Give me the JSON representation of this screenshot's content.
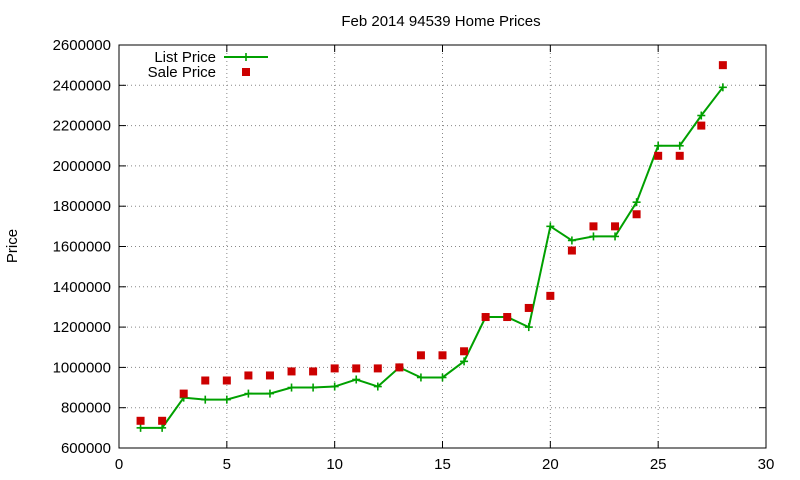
{
  "chart_data": {
    "type": "line",
    "title": "Feb 2014 94539 Home Prices",
    "xlabel": "",
    "ylabel": "Price",
    "xlim": [
      0,
      30
    ],
    "ylim": [
      600000,
      2600000
    ],
    "xticks": [
      0,
      5,
      10,
      15,
      20,
      25,
      30
    ],
    "yticks": [
      600000,
      800000,
      1000000,
      1200000,
      1400000,
      1600000,
      1800000,
      2000000,
      2200000,
      2400000,
      2600000
    ],
    "grid": true,
    "legend_position": "top-left",
    "x": [
      1,
      2,
      3,
      4,
      5,
      6,
      7,
      8,
      9,
      10,
      11,
      12,
      13,
      14,
      15,
      16,
      17,
      18,
      19,
      20,
      21,
      22,
      23,
      24,
      25,
      26,
      27,
      28
    ],
    "series": [
      {
        "name": "List Price",
        "style": "line-points",
        "color": "#00a000",
        "values": [
          700000,
          700000,
          850000,
          840000,
          840000,
          870000,
          870000,
          900000,
          900000,
          905000,
          940000,
          905000,
          1000000,
          950000,
          950000,
          1030000,
          1250000,
          1250000,
          1200000,
          1700000,
          1630000,
          1650000,
          1650000,
          1820000,
          2100000,
          2100000,
          2250000,
          2390000
        ]
      },
      {
        "name": "Sale Price",
        "style": "points",
        "color": "#cc0000",
        "values": [
          735000,
          735000,
          870000,
          935000,
          935000,
          960000,
          960000,
          980000,
          980000,
          995000,
          995000,
          995000,
          1000000,
          1060000,
          1060000,
          1080000,
          1250000,
          1250000,
          1295000,
          1355000,
          1580000,
          1700000,
          1700000,
          1760000,
          2050000,
          2050000,
          2200000,
          2500000
        ]
      }
    ]
  }
}
